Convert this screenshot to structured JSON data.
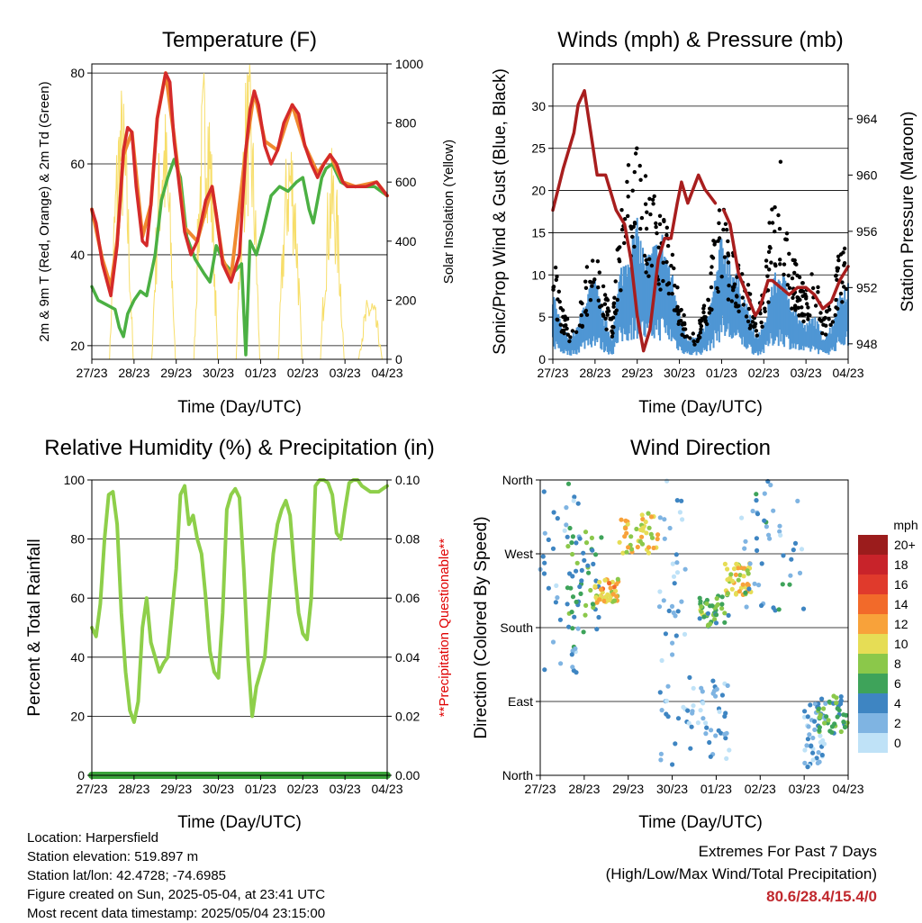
{
  "panels": {
    "temperature": {
      "title": "Temperature (F)",
      "ylabel_left": "2m & 9m T (Red, Orange) & 2m Td (Green)",
      "ylabel_right": "Solar Insolation (Yellow)",
      "xlabel": "Time (Day/UTC)"
    },
    "winds": {
      "title": "Winds (mph) & Pressure (mb)",
      "ylabel_left": "Sonic/Prop Wind & Gust (Blue, Black)",
      "ylabel_right": "Station Pressure (Maroon)",
      "xlabel": "Time (Day/UTC)"
    },
    "humidity": {
      "title": "Relative Humidity (%) & Precipitation (in)",
      "ylabel_left": "Percent & Total Rainfall",
      "ylabel_right": "**Precipitation Questionable**",
      "xlabel": "Time (Day/UTC)"
    },
    "direction": {
      "title": "Wind Direction",
      "ylabel_left": "Direction (Colored By Speed)",
      "xlabel": "Time (Day/UTC)",
      "legend_title": "mph"
    }
  },
  "info": {
    "location": "Location: Harpersfield",
    "elevation": "Station elevation: 519.897 m",
    "latlon": "Station lat/lon: 42.4728; -74.6985",
    "created": "Figure created on Sun, 2025-05-04, at 23:41 UTC",
    "latest": "Most recent data timestamp: 2025/05/04 23:15:00"
  },
  "extremes": {
    "line1": "Extremes For Past 7 Days",
    "line2": "(High/Low/Max Wind/Total Precipitation)",
    "values": "80.6/28.4/15.4/0"
  },
  "colors": {
    "temp2m": "#d42a2a",
    "temp9m": "#f08a30",
    "dewpoint": "#4bb043",
    "solar": "#f7de6a",
    "gust": "#000000",
    "wind": "#4f96d4",
    "pressure": "#a81e1e",
    "rh": "#8ecf4a",
    "precip": "#3aa33a",
    "questionable": "#e00000"
  },
  "chart_data": [
    {
      "type": "line",
      "title": "Temperature (F)",
      "xlabel": "Time (Day/UTC)",
      "ylabel": "2m & 9m T (Red, Orange) & 2m Td (Green)",
      "y2label": "Solar Insolation (Yellow)",
      "xticks": [
        "27/23",
        "28/23",
        "29/23",
        "30/23",
        "01/23",
        "02/23",
        "03/23",
        "04/23"
      ],
      "x_day_range": [
        0,
        7
      ],
      "ylim": [
        17,
        82
      ],
      "yticks": [
        20,
        40,
        60,
        80
      ],
      "y2lim": [
        0,
        1000
      ],
      "y2ticks": [
        0,
        200,
        400,
        600,
        800,
        1000
      ],
      "grid": true,
      "series": [
        {
          "name": "2m T",
          "color": "#d42a2a",
          "axis": "left",
          "x": [
            0,
            0.1,
            0.25,
            0.45,
            0.6,
            0.75,
            0.85,
            0.95,
            1.05,
            1.2,
            1.3,
            1.4,
            1.55,
            1.75,
            1.85,
            1.95,
            2.2,
            2.35,
            2.5,
            2.7,
            2.85,
            2.95,
            3.1,
            3.3,
            3.5,
            3.65,
            3.75,
            3.85,
            3.95,
            4.1,
            4.25,
            4.4,
            4.55,
            4.75,
            4.9,
            5.05,
            5.2,
            5.35,
            5.5,
            5.65,
            5.8,
            5.95,
            6.05,
            6.25,
            6.5,
            6.75,
            7.0
          ],
          "y": [
            50,
            47,
            38,
            31,
            42,
            63,
            68,
            67,
            55,
            43,
            42,
            51,
            70,
            80,
            78,
            65,
            45,
            40,
            43,
            52,
            55,
            49,
            38,
            34,
            40,
            63,
            72,
            76,
            73,
            64,
            60,
            63,
            69,
            73,
            71,
            64,
            60,
            57,
            60,
            62,
            60,
            56,
            55,
            55,
            55,
            56,
            53
          ]
        },
        {
          "name": "9m T",
          "color": "#f08a30",
          "axis": "left",
          "x": [
            0,
            0.25,
            0.45,
            0.6,
            0.75,
            0.95,
            1.2,
            1.4,
            1.55,
            1.75,
            1.95,
            2.2,
            2.5,
            2.85,
            3.1,
            3.3,
            3.65,
            3.85,
            4.1,
            4.4,
            4.75,
            5.05,
            5.35,
            5.65,
            5.95,
            6.25,
            6.75,
            7.0
          ],
          "y": [
            50,
            39,
            33,
            43,
            62,
            67,
            44,
            51,
            70,
            80,
            66,
            46,
            43,
            55,
            39,
            35,
            63,
            76,
            65,
            63,
            73,
            64,
            58,
            62,
            56,
            55,
            56,
            53
          ]
        },
        {
          "name": "2m Td",
          "color": "#4bb043",
          "axis": "left",
          "x": [
            0,
            0.15,
            0.35,
            0.55,
            0.65,
            0.75,
            0.85,
            1.0,
            1.15,
            1.3,
            1.5,
            1.65,
            1.8,
            1.95,
            2.1,
            2.25,
            2.45,
            2.65,
            2.8,
            2.95,
            3.15,
            3.35,
            3.55,
            3.65,
            3.75,
            3.9,
            4.05,
            4.25,
            4.45,
            4.65,
            4.85,
            5.0,
            5.15,
            5.25,
            5.35,
            5.45,
            5.55,
            5.7,
            5.9,
            6.1,
            6.4,
            6.7,
            7.0
          ],
          "y": [
            33,
            30,
            29,
            28,
            24,
            22,
            27,
            30,
            32,
            31,
            40,
            52,
            57,
            61,
            57,
            44,
            39,
            36,
            34,
            42,
            38,
            36,
            38,
            18,
            43,
            40,
            45,
            53,
            55,
            54,
            56,
            57,
            50,
            47,
            52,
            57,
            59,
            60,
            56,
            55,
            55,
            55,
            53
          ]
        },
        {
          "name": "Solar Insolation",
          "color": "#f7de6a",
          "axis": "right",
          "daily_peaks": [
            {
              "day": 0.7,
              "peak": 950
            },
            {
              "day": 1.7,
              "peak": 900
            },
            {
              "day": 2.7,
              "peak": 1050
            },
            {
              "day": 3.7,
              "peak": 1030
            },
            {
              "day": 4.7,
              "peak": 820
            },
            {
              "day": 5.7,
              "peak": 720
            },
            {
              "day": 6.6,
              "peak": 230
            }
          ]
        }
      ]
    },
    {
      "type": "line",
      "title": "Winds (mph) & Pressure (mb)",
      "xlabel": "Time (Day/UTC)",
      "ylabel": "Sonic/Prop Wind & Gust (Blue, Black)",
      "y2label": "Station Pressure (Maroon)",
      "xticks": [
        "27/23",
        "28/23",
        "29/23",
        "30/23",
        "01/23",
        "02/23",
        "03/23",
        "04/23"
      ],
      "x_day_range": [
        0,
        7
      ],
      "ylim": [
        0,
        35
      ],
      "yticks": [
        0,
        5,
        10,
        15,
        20,
        25,
        30
      ],
      "y2lim": [
        946.9,
        967.9
      ],
      "y2ticks": [
        948,
        952,
        956,
        960,
        964
      ],
      "grid": true,
      "series": [
        {
          "name": "Wind",
          "color": "#4f96d4",
          "axis": "left",
          "x": [
            0,
            0.2,
            0.4,
            0.6,
            0.8,
            1.0,
            1.2,
            1.4,
            1.6,
            1.8,
            2.0,
            2.2,
            2.4,
            2.6,
            2.8,
            3.0,
            3.2,
            3.4,
            3.6,
            3.8,
            4.0,
            4.2,
            4.4,
            4.6,
            4.8,
            5.0,
            5.2,
            5.4,
            5.6,
            5.8,
            6.0,
            6.2,
            6.4,
            6.6,
            6.8,
            7.0
          ],
          "y": [
            6,
            3,
            2,
            3,
            6,
            7,
            4,
            2,
            8,
            10,
            12,
            9,
            10,
            11,
            8,
            4,
            2,
            2,
            3,
            6,
            11,
            9,
            7,
            5,
            2,
            3,
            7,
            8,
            6,
            4,
            3,
            4,
            2,
            3,
            6,
            7
          ]
        },
        {
          "name": "Gust",
          "color": "#000000",
          "axis": "left",
          "x": [
            0,
            0.2,
            0.4,
            0.6,
            0.8,
            1.0,
            1.2,
            1.4,
            1.6,
            1.8,
            2.0,
            2.2,
            2.4,
            2.6,
            2.8,
            3.0,
            3.2,
            3.4,
            3.6,
            3.8,
            4.0,
            4.2,
            4.4,
            4.6,
            4.8,
            5.0,
            5.2,
            5.4,
            5.6,
            5.8,
            6.0,
            6.2,
            6.4,
            6.6,
            6.8,
            7.0
          ],
          "y": [
            12,
            6,
            4,
            5,
            10,
            12,
            8,
            5,
            16,
            22,
            23,
            20,
            18,
            16,
            14,
            7,
            3,
            3,
            6,
            13,
            18,
            13,
            11,
            9,
            4,
            8,
            18,
            22,
            13,
            10,
            8,
            10,
            5,
            7,
            12,
            14
          ]
        },
        {
          "name": "Station Pressure",
          "color": "#a81e1e",
          "axis": "right",
          "x": [
            0,
            0.25,
            0.5,
            0.6,
            0.75,
            0.9,
            1.05,
            1.25,
            1.5,
            1.7,
            1.85,
            2.0,
            2.15,
            2.3,
            2.5,
            2.65,
            2.8,
            2.95,
            3.05,
            3.2,
            3.45,
            3.6,
            3.85
          ],
          "y": [
            957.5,
            960.5,
            963,
            965,
            966,
            963,
            960,
            960,
            957.5,
            956.5,
            954,
            950,
            947.5,
            949,
            954,
            955.5,
            955.5,
            958,
            959.5,
            958,
            960,
            959,
            958
          ]
        },
        {
          "name": "Station Pressure (cont.)",
          "color": "#a81e1e",
          "axis": "right",
          "x": [
            4.05,
            4.2,
            4.4,
            4.6,
            4.8,
            4.9,
            5.0,
            5.1,
            5.2,
            5.4,
            5.6,
            5.8,
            6.0,
            6.2,
            6.4,
            6.6,
            6.8,
            7.0
          ],
          "y": [
            957.5,
            956.5,
            953,
            951.5,
            950,
            950.5,
            951.5,
            952.5,
            952.5,
            952,
            951.5,
            952,
            952,
            951.5,
            950.5,
            951,
            952.5,
            953.5
          ]
        }
      ]
    },
    {
      "type": "line",
      "title": "Relative Humidity (%) & Precipitation (in)",
      "xlabel": "Time (Day/UTC)",
      "ylabel": "Percent & Total Rainfall",
      "y2label": "**Precipitation Questionable**",
      "xticks": [
        "27/23",
        "28/23",
        "29/23",
        "30/23",
        "01/23",
        "02/23",
        "03/23",
        "04/23"
      ],
      "x_day_range": [
        0,
        7
      ],
      "ylim": [
        0,
        100
      ],
      "yticks": [
        0,
        20,
        40,
        60,
        80,
        100
      ],
      "y2lim": [
        0,
        0.1
      ],
      "y2ticks": [
        0.0,
        0.02,
        0.04,
        0.06,
        0.08,
        0.1
      ],
      "grid": true,
      "series": [
        {
          "name": "Relative Humidity",
          "color": "#8ecf4a",
          "axis": "left",
          "x": [
            0,
            0.1,
            0.2,
            0.3,
            0.4,
            0.5,
            0.6,
            0.7,
            0.8,
            0.9,
            1.0,
            1.1,
            1.2,
            1.3,
            1.4,
            1.5,
            1.6,
            1.7,
            1.8,
            1.9,
            2.0,
            2.1,
            2.2,
            2.3,
            2.4,
            2.5,
            2.6,
            2.7,
            2.8,
            2.9,
            3.0,
            3.1,
            3.2,
            3.3,
            3.4,
            3.5,
            3.6,
            3.7,
            3.8,
            3.9,
            4.0,
            4.1,
            4.2,
            4.3,
            4.4,
            4.5,
            4.6,
            4.7,
            4.8,
            4.9,
            5.0,
            5.1,
            5.2,
            5.3,
            5.4,
            5.5,
            5.6,
            5.7,
            5.8,
            5.9,
            6.0,
            6.1,
            6.2,
            6.3,
            6.4,
            6.5,
            6.6,
            6.7,
            6.8,
            6.9,
            7.0
          ],
          "y": [
            50,
            47,
            58,
            80,
            95,
            96,
            85,
            55,
            35,
            22,
            18,
            25,
            50,
            60,
            45,
            40,
            35,
            38,
            40,
            55,
            70,
            95,
            98,
            85,
            88,
            80,
            75,
            60,
            42,
            35,
            33,
            55,
            90,
            95,
            97,
            94,
            70,
            40,
            20,
            30,
            35,
            40,
            58,
            75,
            85,
            90,
            93,
            88,
            70,
            55,
            48,
            46,
            60,
            98,
            100,
            100,
            99,
            95,
            82,
            80,
            90,
            99,
            100,
            100,
            98,
            97,
            96,
            96,
            96,
            97,
            98
          ]
        },
        {
          "name": "Precipitation",
          "color": "#3aa33a",
          "axis": "right",
          "x": [
            0,
            7
          ],
          "y": [
            0,
            0
          ]
        }
      ]
    },
    {
      "type": "scatter",
      "title": "Wind Direction",
      "xlabel": "Time (Day/UTC)",
      "ylabel": "Direction (Colored By Speed)",
      "xticks": [
        "27/23",
        "28/23",
        "29/23",
        "30/23",
        "01/23",
        "02/23",
        "03/23",
        "04/23"
      ],
      "x_day_range": [
        0,
        7
      ],
      "yticks": [
        "North",
        "East",
        "South",
        "West",
        "North"
      ],
      "ylim_degrees": [
        0,
        360
      ],
      "grid": true,
      "legend": {
        "title": "mph",
        "labels": [
          "20+",
          "18",
          "16",
          "14",
          "12",
          "10",
          "8",
          "6",
          "4",
          "2",
          "0"
        ],
        "colors": [
          "#9b1c1c",
          "#c8232a",
          "#e03a2c",
          "#f26a2a",
          "#f8a23a",
          "#e6dd55",
          "#8bc84a",
          "#3ea35a",
          "#3e85c2",
          "#7fb4e2",
          "#bfe2f7"
        ],
        "placement": "right"
      },
      "clusters": [
        {
          "x_range": [
            0.0,
            0.9
          ],
          "dir_range": [
            120,
            360
          ],
          "speed": 3
        },
        {
          "x_range": [
            0.6,
            1.4
          ],
          "dir_range": [
            170,
            300
          ],
          "speed": 6
        },
        {
          "x_range": [
            1.2,
            1.8
          ],
          "dir_range": [
            210,
            240
          ],
          "speed": 11
        },
        {
          "x_range": [
            1.8,
            2.7
          ],
          "dir_range": [
            270,
            320
          ],
          "speed": 10
        },
        {
          "x_range": [
            2.7,
            3.3
          ],
          "dir_range": [
            10,
            360
          ],
          "speed": 2
        },
        {
          "x_range": [
            3.3,
            4.3
          ],
          "dir_range": [
            20,
            120
          ],
          "speed": 2
        },
        {
          "x_range": [
            3.6,
            4.3
          ],
          "dir_range": [
            180,
            220
          ],
          "speed": 7
        },
        {
          "x_range": [
            4.2,
            4.8
          ],
          "dir_range": [
            220,
            260
          ],
          "speed": 10
        },
        {
          "x_range": [
            4.5,
            6.0
          ],
          "dir_range": [
            200,
            360
          ],
          "speed": 3
        },
        {
          "x_range": [
            6.0,
            6.5
          ],
          "dir_range": [
            10,
            90
          ],
          "speed": 2
        },
        {
          "x_range": [
            6.3,
            7.0
          ],
          "dir_range": [
            50,
            100
          ],
          "speed": 6
        }
      ]
    }
  ]
}
